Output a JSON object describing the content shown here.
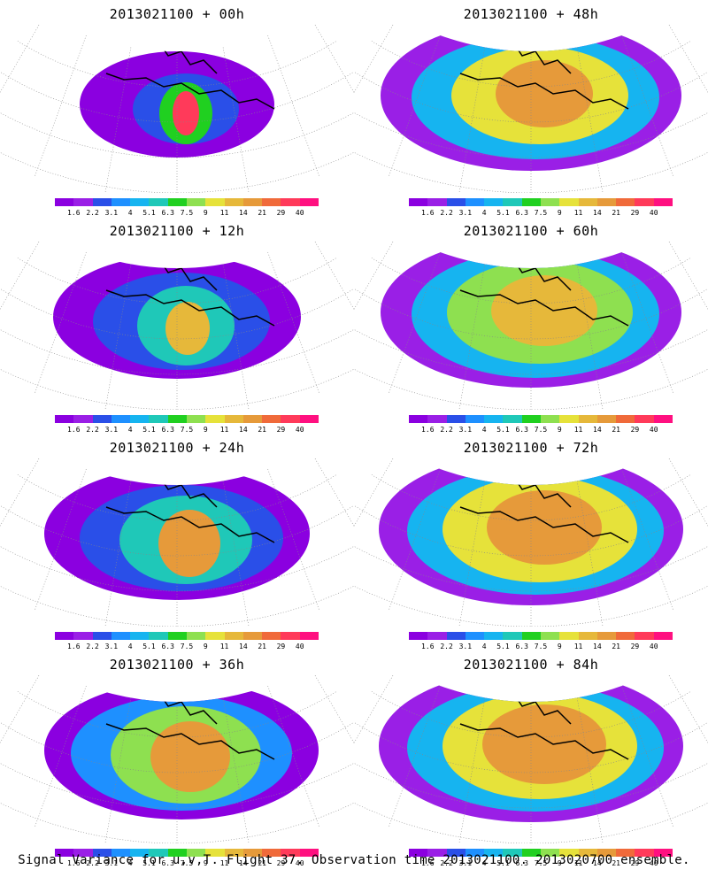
{
  "panels": [
    {
      "title": "2013021100 + 00h",
      "hour": 0
    },
    {
      "title": "2013021100 + 48h",
      "hour": 48
    },
    {
      "title": "2013021100 + 12h",
      "hour": 12
    },
    {
      "title": "2013021100 + 60h",
      "hour": 60
    },
    {
      "title": "2013021100 + 24h",
      "hour": 24
    },
    {
      "title": "2013021100 + 72h",
      "hour": 72
    },
    {
      "title": "2013021100 + 36h",
      "hour": 36
    },
    {
      "title": "2013021100 + 84h",
      "hour": 84
    }
  ],
  "colorbar": {
    "labels": [
      "1.6",
      "2.2",
      "3.1",
      "4",
      "5.1",
      "6.3",
      "7.5",
      "9",
      "11",
      "14",
      "21",
      "29",
      "40"
    ],
    "colors": [
      "#8b00e0",
      "#9a1fe6",
      "#2a4fe8",
      "#1e90ff",
      "#16b4f0",
      "#1fc8b8",
      "#20d020",
      "#8ee050",
      "#e6e23a",
      "#e6b83a",
      "#e69a3a",
      "#f06a3a",
      "#ff3a5a",
      "#ff1080"
    ]
  },
  "caption": "Signal Variance for u,v,T. Flight 37. Observation time 2013021100. 2013020700 ensemble.",
  "map": {
    "land_color": "#ffffff",
    "coast_color": "#000000",
    "grid_color": "#888888"
  }
}
